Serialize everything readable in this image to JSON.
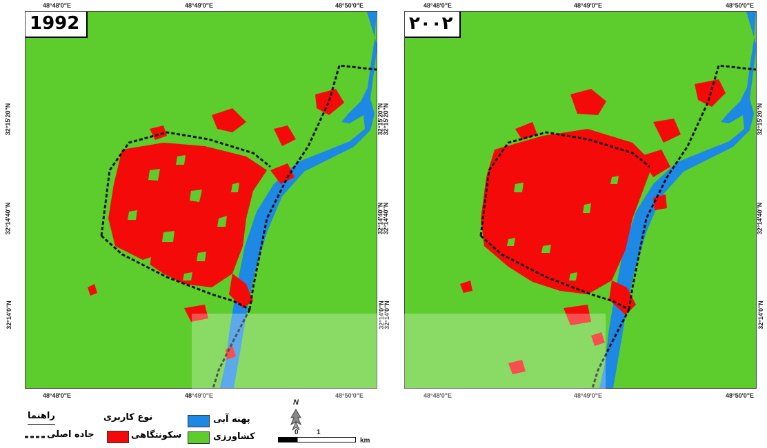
{
  "maps": [
    {
      "year": "1992",
      "top_ticks": [
        "48°48'0\"E",
        "48°49'0\"E",
        "48°50'0\"E"
      ],
      "bottom_ticks": [
        "48°48'0\"E",
        "48°49'0\"E",
        "48°50'0\"E"
      ],
      "left_ticks": [
        "32°15'20\"N",
        "32°14'40\"N",
        "32°14'0\"N"
      ],
      "right_ticks": [
        "32°15'20\"N",
        "32°14'40\"N",
        "32°14'0\"N"
      ]
    },
    {
      "year": "۲۰۰۲",
      "top_ticks": [
        "48°48'0\"E",
        "48°49'0\"E",
        "48°50'0\"E"
      ],
      "bottom_ticks": [
        "48°48'0\"E",
        "48°49'0\"E",
        "48°50'0\"E"
      ],
      "left_ticks": [
        "32°15'20\"N",
        "32°14'40\"N",
        "32°14'0\"N"
      ],
      "right_ticks": [
        "32°15'20\"N",
        "32°14'40\"N",
        "32°14'0\"N"
      ]
    }
  ],
  "legend": {
    "title": "راهنما",
    "road_label": "جاده اصلی",
    "landuse_title": "نوع کاربری",
    "settlement_label": "سکونتگاهی",
    "water_label": "پهنه آبی",
    "agriculture_label": "کشاورزی"
  },
  "scale": {
    "label_zero": "0",
    "label_one": "1",
    "unit": "km"
  },
  "north_label": "N",
  "colors": {
    "agriculture": "#5ccd2c",
    "settlement": "#f50a0a",
    "water": "#1e88e5",
    "road": "#111111"
  }
}
